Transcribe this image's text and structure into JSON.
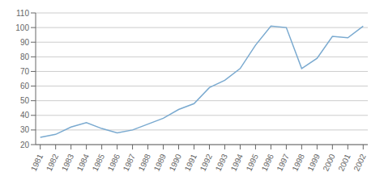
{
  "chart_data": {
    "type": "line",
    "x": [
      1981,
      1982,
      1983,
      1984,
      1985,
      1986,
      1987,
      1988,
      1989,
      1990,
      1991,
      1992,
      1993,
      1994,
      1995,
      1996,
      1997,
      1998,
      1999,
      2000,
      2001,
      2002
    ],
    "values": [
      25,
      27,
      32,
      35,
      31,
      28,
      30,
      34,
      38,
      44,
      48,
      59,
      64,
      72,
      88,
      101,
      100,
      72,
      79,
      94,
      93,
      101
    ],
    "color": "#7aaad0",
    "xlim": [
      1980.7,
      2002.3
    ],
    "xticks": [
      1981,
      1982,
      1983,
      1984,
      1985,
      1986,
      1987,
      1988,
      1989,
      1990,
      1991,
      1992,
      1993,
      1994,
      1995,
      1996,
      1997,
      1998,
      1999,
      2000,
      2001,
      2002
    ],
    "ylim": [
      20,
      110
    ],
    "yticks": [
      20,
      30,
      40,
      50,
      60,
      70,
      80,
      90,
      100,
      110
    ],
    "grid": true
  }
}
